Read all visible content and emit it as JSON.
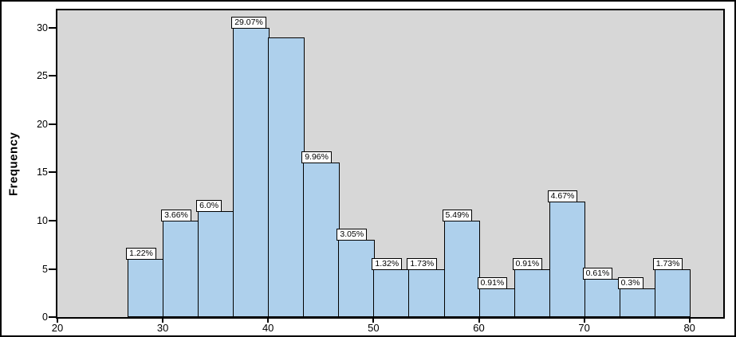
{
  "chart_data": {
    "type": "bar",
    "chart_kind": "histogram",
    "title": "",
    "xlabel": "",
    "ylabel": "Frequency",
    "xlim": [
      20,
      83.2
    ],
    "ylim": [
      0,
      31.8
    ],
    "x_ticks": [
      20,
      30,
      40,
      50,
      60,
      70,
      80
    ],
    "y_ticks": [
      0,
      5,
      10,
      15,
      20,
      25,
      30
    ],
    "grid": "off",
    "legend": "none",
    "bin_width": 3.33,
    "bars": [
      {
        "x0": 26.67,
        "x1": 30.0,
        "frequency": 6,
        "label": "1.22%"
      },
      {
        "x0": 30.0,
        "x1": 33.33,
        "frequency": 10,
        "label": "3.66%"
      },
      {
        "x0": 33.33,
        "x1": 36.67,
        "frequency": 11,
        "label": "6.0%"
      },
      {
        "x0": 36.67,
        "x1": 40.0,
        "frequency": 30,
        "label": "29.07%"
      },
      {
        "x0": 40.0,
        "x1": 43.33,
        "frequency": 29,
        "label": null
      },
      {
        "x0": 43.33,
        "x1": 46.67,
        "frequency": 16,
        "label": "9.96%"
      },
      {
        "x0": 46.67,
        "x1": 50.0,
        "frequency": 8,
        "label": "3.05%"
      },
      {
        "x0": 50.0,
        "x1": 53.33,
        "frequency": 5,
        "label": "1.32%"
      },
      {
        "x0": 53.33,
        "x1": 56.67,
        "frequency": 5,
        "label": "1.73%"
      },
      {
        "x0": 56.67,
        "x1": 60.0,
        "frequency": 10,
        "label": "5.49%"
      },
      {
        "x0": 60.0,
        "x1": 63.33,
        "frequency": 3,
        "label": "0.91%"
      },
      {
        "x0": 63.33,
        "x1": 66.67,
        "frequency": 5,
        "label": "0.91%"
      },
      {
        "x0": 66.67,
        "x1": 70.0,
        "frequency": 12,
        "label": "4.67%"
      },
      {
        "x0": 70.0,
        "x1": 73.33,
        "frequency": 4,
        "label": "0.61%"
      },
      {
        "x0": 73.33,
        "x1": 76.67,
        "frequency": 3,
        "label": "0.3%"
      },
      {
        "x0": 76.67,
        "x1": 80.0,
        "frequency": 5,
        "label": "1.73%"
      }
    ],
    "colors": {
      "bar_fill": "#aed0ec",
      "bar_border": "#000000",
      "plot_background": "#d7d7d7",
      "figure_background": "#ffffff",
      "label_box_background": "#ffffff",
      "text": "#000000"
    }
  }
}
